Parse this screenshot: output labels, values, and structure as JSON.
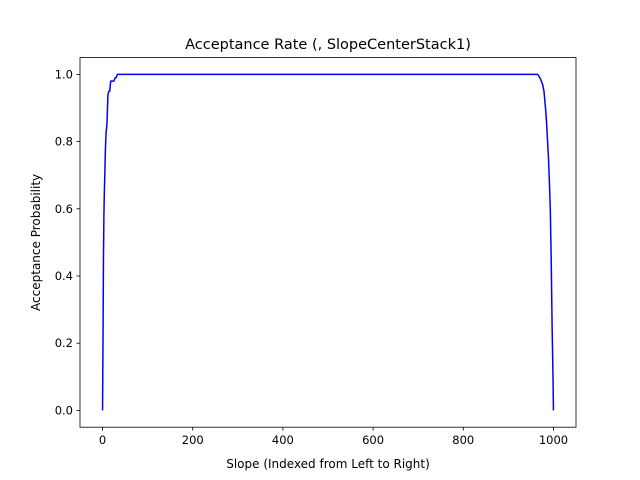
{
  "chart_data": {
    "type": "line",
    "title": "Acceptance Rate (, SlopeCenterStack1)",
    "xlabel": "Slope (Indexed from Left to Right)",
    "ylabel": "Acceptance Probability",
    "xlim": [
      -50,
      1050
    ],
    "ylim": [
      -0.05,
      1.05
    ],
    "xticks": [
      0,
      200,
      400,
      600,
      800,
      1000
    ],
    "yticks": [
      0.0,
      0.2,
      0.4,
      0.6,
      0.8,
      1.0
    ],
    "xtick_labels": [
      "0",
      "200",
      "400",
      "600",
      "800",
      "1000"
    ],
    "ytick_labels": [
      "0.0",
      "0.2",
      "0.4",
      "0.6",
      "0.8",
      "1.0"
    ],
    "grid": false,
    "series": [
      {
        "color": "#0000ff",
        "x": [
          0,
          1,
          2,
          3,
          4,
          5,
          6,
          7,
          8,
          9,
          10,
          12,
          14,
          16,
          18,
          20,
          22,
          25,
          28,
          30,
          33,
          36,
          40,
          50,
          100,
          200,
          300,
          400,
          500,
          600,
          700,
          800,
          900,
          950,
          960,
          965,
          970,
          973,
          976,
          979,
          981,
          983,
          985,
          987,
          989,
          991,
          993,
          995,
          997,
          999,
          1000
        ],
        "y": [
          0.0,
          0.2,
          0.45,
          0.58,
          0.65,
          0.7,
          0.76,
          0.8,
          0.83,
          0.84,
          0.86,
          0.94,
          0.95,
          0.95,
          0.98,
          0.98,
          0.98,
          0.98,
          0.99,
          0.99,
          1.0,
          1.0,
          1.0,
          1.0,
          1.0,
          1.0,
          1.0,
          1.0,
          1.0,
          1.0,
          1.0,
          1.0,
          1.0,
          1.0,
          1.0,
          1.0,
          0.99,
          0.98,
          0.97,
          0.95,
          0.92,
          0.89,
          0.85,
          0.8,
          0.75,
          0.68,
          0.6,
          0.45,
          0.25,
          0.1,
          0.0
        ]
      }
    ]
  }
}
